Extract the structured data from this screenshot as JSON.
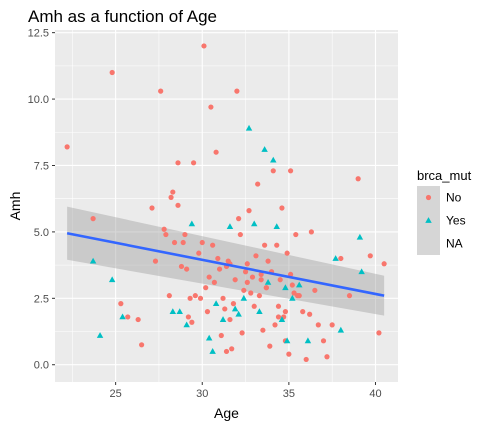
{
  "chart_data": {
    "type": "scatter",
    "title": "Amh as a function of Age",
    "xlabel": "Age",
    "ylabel": "Amh",
    "xlim": [
      21.5,
      41.3
    ],
    "ylim": [
      -0.65,
      12.6
    ],
    "x_ticks": [
      25,
      30,
      35,
      40
    ],
    "y_ticks": [
      0.0,
      2.5,
      5.0,
      7.5,
      10.0,
      12.5
    ],
    "x_tick_labels": [
      "25",
      "30",
      "35",
      "40"
    ],
    "y_tick_labels": [
      "0.0",
      "2.5",
      "5.0",
      "7.5",
      "10.0",
      "12.5"
    ],
    "grid": true,
    "legend": {
      "title": "brca_mut",
      "position": "right",
      "entries": [
        {
          "label": "No",
          "shape": "circle",
          "color": "#F8766D"
        },
        {
          "label": "Yes",
          "shape": "triangle",
          "color": "#00BFC4"
        },
        {
          "label": "NA",
          "shape": "none",
          "color": "#999999"
        }
      ]
    },
    "colors": {
      "panel": "#EBEBEB",
      "grid": "#FFFFFF",
      "No": "#F8766D",
      "Yes": "#00BFC4",
      "fit_line": "#3366FF",
      "ribbon": "#999999"
    },
    "fit": {
      "method": "linear",
      "x": [
        22.2,
        40.5
      ],
      "y": [
        4.95,
        2.6
      ],
      "ci_lower": [
        3.95,
        1.85
      ],
      "ci_upper": [
        5.95,
        3.35
      ]
    },
    "series": [
      {
        "name": "No",
        "shape": "circle",
        "x": [
          22.2,
          23.7,
          24.8,
          25.3,
          25.7,
          26.5,
          27.1,
          27.3,
          27.6,
          27.9,
          28.1,
          28.2,
          28.3,
          28.4,
          28.6,
          28.8,
          29.0,
          29.1,
          29.2,
          29.3,
          29.5,
          29.6,
          29.8,
          29.9,
          30.0,
          30.1,
          30.2,
          30.4,
          30.5,
          30.6,
          30.7,
          30.8,
          30.9,
          31.0,
          31.1,
          31.2,
          31.3,
          31.4,
          31.5,
          31.6,
          31.7,
          31.8,
          31.9,
          32.0,
          32.1,
          32.2,
          32.3,
          32.4,
          32.5,
          32.6,
          32.7,
          32.8,
          32.9,
          33.0,
          33.1,
          33.2,
          33.3,
          33.4,
          33.5,
          33.6,
          33.7,
          33.8,
          33.9,
          34.0,
          34.1,
          34.2,
          34.3,
          34.4,
          34.5,
          34.6,
          34.7,
          34.8,
          34.9,
          35.0,
          35.1,
          35.2,
          35.3,
          35.4,
          35.5,
          35.6,
          35.8,
          36.0,
          36.2,
          36.5,
          36.7,
          37.0,
          37.2,
          37.5,
          38.0,
          38.5,
          39.0,
          39.7,
          40.2,
          40.5,
          27.8,
          28.6,
          29.4,
          30.3,
          31.6,
          32.6,
          33.7,
          34.4,
          35.1,
          26.3,
          28.9,
          31.4,
          33.4,
          34.8,
          36.3
        ],
        "y": [
          8.2,
          5.5,
          11.0,
          2.3,
          1.8,
          0.75,
          5.9,
          3.9,
          10.3,
          4.9,
          2.6,
          6.3,
          6.5,
          4.6,
          7.6,
          3.7,
          4.9,
          3.6,
          1.8,
          2.5,
          7.6,
          2.6,
          4.2,
          2.5,
          4.6,
          12.0,
          2.9,
          3.3,
          9.7,
          4.5,
          3.1,
          8.0,
          4.0,
          3.6,
          1.1,
          2.5,
          2.1,
          3.7,
          3.9,
          1.7,
          0.6,
          2.3,
          3.2,
          10.3,
          5.5,
          4.9,
          1.2,
          2.8,
          3.5,
          3.1,
          5.8,
          2.7,
          3.3,
          2.2,
          4.1,
          6.8,
          2.6,
          3.4,
          1.3,
          4.5,
          2.9,
          3.9,
          0.7,
          3.5,
          7.3,
          1.5,
          4.5,
          2.2,
          3.2,
          5.9,
          1.8,
          0.9,
          4.2,
          0.4,
          7.3,
          3.0,
          2.7,
          4.9,
          2.6,
          2.6,
          2.0,
          0.2,
          1.9,
          2.8,
          1.5,
          0.9,
          0.3,
          1.5,
          4.0,
          2.6,
          7.0,
          4.1,
          1.2,
          3.8,
          5.1,
          6.0,
          1.6,
          2.0,
          3.8,
          3.8,
          2.9,
          1.8,
          3.4,
          1.7,
          4.6,
          0.5,
          3.2,
          2.0,
          5.0
        ],
        "color": "#F8766D"
      },
      {
        "name": "Yes",
        "shape": "triangle",
        "x": [
          23.7,
          24.1,
          24.8,
          25.4,
          28.3,
          28.7,
          29.1,
          29.4,
          30.4,
          30.8,
          31.2,
          31.6,
          31.9,
          32.4,
          32.7,
          33.0,
          33.3,
          33.6,
          33.8,
          34.1,
          34.3,
          34.6,
          34.8,
          35.2,
          35.6,
          36.1,
          37.7,
          38.0,
          39.1,
          39.2,
          30.6,
          32.1,
          34.9
        ],
        "y": [
          3.9,
          1.1,
          3.2,
          1.8,
          2.0,
          2.0,
          1.5,
          5.3,
          1.0,
          2.3,
          1.7,
          5.2,
          2.1,
          2.5,
          8.9,
          5.3,
          2.0,
          8.1,
          3.1,
          7.7,
          5.2,
          1.7,
          2.9,
          2.5,
          3.0,
          0.9,
          4.0,
          1.3,
          4.8,
          3.5,
          0.5,
          1.9,
          0.9
        ],
        "color": "#00BFC4"
      }
    ]
  }
}
